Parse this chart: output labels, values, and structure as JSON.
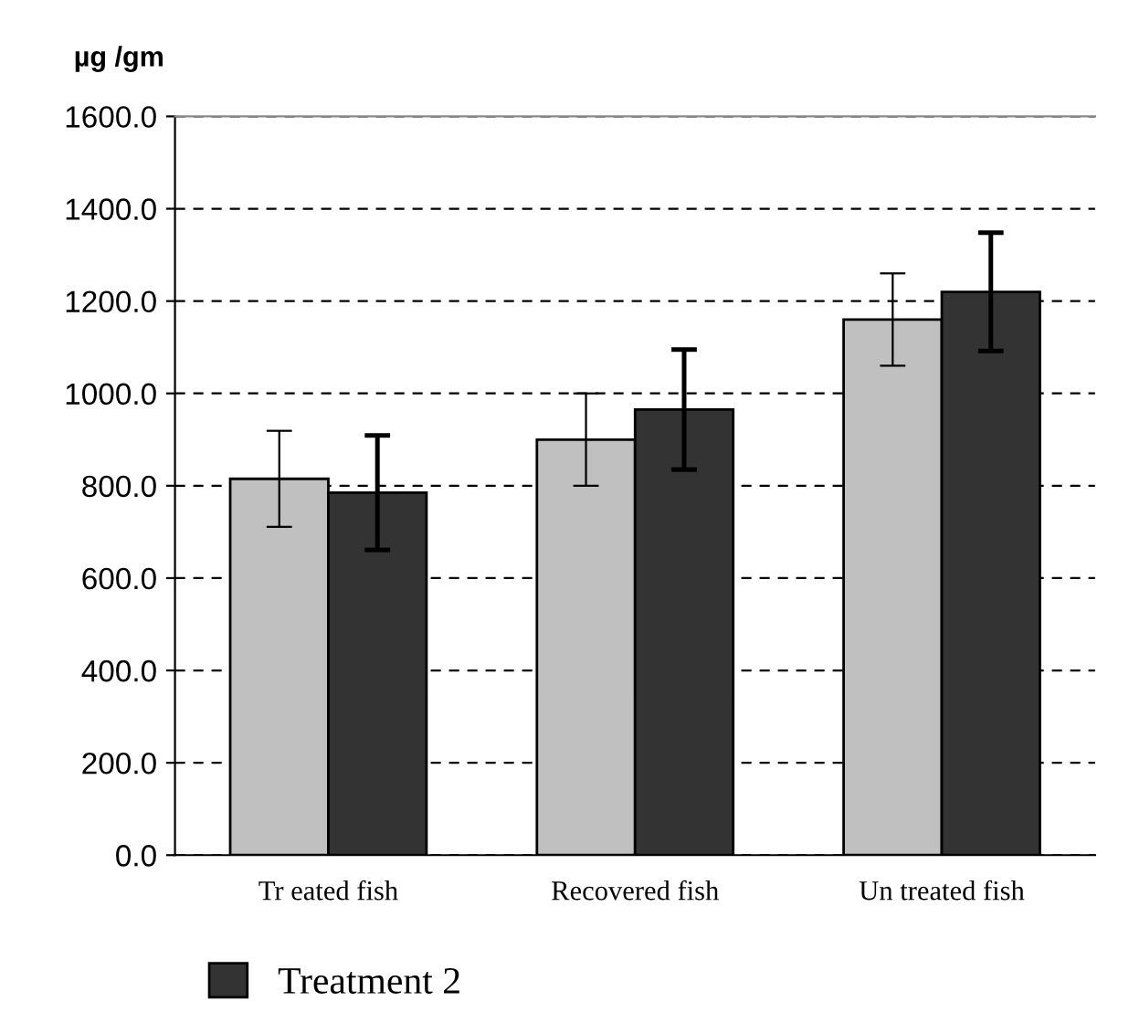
{
  "chart_data": {
    "type": "bar",
    "ylabel": "µg /gm",
    "categories": [
      "Tr eated fish",
      "Recovered fish",
      "Un treated fish"
    ],
    "series": [
      {
        "color": "#c0c0c0",
        "values": [
          815,
          900,
          1160
        ],
        "errors": [
          104,
          100,
          100
        ]
      },
      {
        "name": "Treatment 2",
        "color": "#333333",
        "values": [
          785,
          965,
          1220
        ],
        "errors": [
          124,
          130,
          128
        ]
      }
    ],
    "ylim": [
      0,
      1600
    ],
    "yticks": [
      {
        "value": 0,
        "label": "0.0"
      },
      {
        "value": 200,
        "label": "200.0"
      },
      {
        "value": 400,
        "label": "400.0"
      },
      {
        "value": 600,
        "label": "600.0"
      },
      {
        "value": 800,
        "label": "800.0"
      },
      {
        "value": 1000,
        "label": "1000.0"
      },
      {
        "value": 1200,
        "label": "1200.0"
      },
      {
        "value": 1400,
        "label": "1400.0"
      },
      {
        "value": 1600,
        "label": "1600.0"
      }
    ],
    "grid": "y",
    "legend": "bottom left"
  }
}
